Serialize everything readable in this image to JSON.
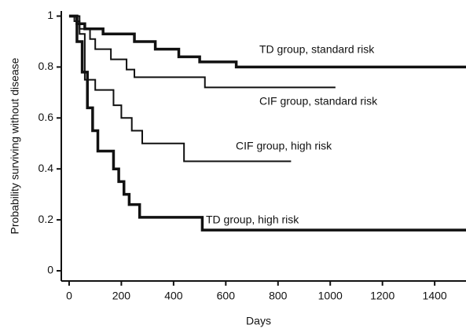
{
  "chart_data": {
    "type": "line",
    "step": true,
    "xlabel": "Days",
    "ylabel": "Probability surviving without disease",
    "xlim": [
      -30,
      1520
    ],
    "ylim": [
      -0.04,
      1.02
    ],
    "xticks": [
      0,
      200,
      400,
      600,
      800,
      1000,
      1200,
      1400
    ],
    "yticks": [
      0,
      0.2,
      0.4,
      0.6,
      0.8,
      1
    ],
    "series": [
      {
        "name": "TD group, standard risk",
        "color": "#111111",
        "x": [
          0,
          30,
          60,
          130,
          250,
          330,
          420,
          500,
          640,
          1520
        ],
        "values": [
          1,
          0.97,
          0.95,
          0.93,
          0.9,
          0.87,
          0.84,
          0.82,
          0.8,
          0.8
        ]
      },
      {
        "name": "CIF group, standard risk",
        "color": "#111111",
        "x": [
          0,
          20,
          40,
          80,
          100,
          160,
          220,
          250,
          520,
          1020
        ],
        "values": [
          1,
          0.98,
          0.95,
          0.91,
          0.87,
          0.83,
          0.79,
          0.76,
          0.72,
          0.72
        ]
      },
      {
        "name": "CIF group, high risk",
        "color": "#111111",
        "x": [
          0,
          40,
          60,
          100,
          170,
          200,
          240,
          280,
          440,
          850
        ],
        "values": [
          1,
          0.93,
          0.75,
          0.71,
          0.65,
          0.6,
          0.55,
          0.5,
          0.43,
          0.43
        ]
      },
      {
        "name": "TD group, high risk",
        "color": "#111111",
        "x": [
          0,
          30,
          50,
          70,
          90,
          110,
          170,
          190,
          210,
          230,
          270,
          510,
          1520
        ],
        "values": [
          1,
          0.9,
          0.78,
          0.64,
          0.55,
          0.47,
          0.4,
          0.35,
          0.3,
          0.26,
          0.21,
          0.16,
          0.16
        ]
      }
    ]
  }
}
